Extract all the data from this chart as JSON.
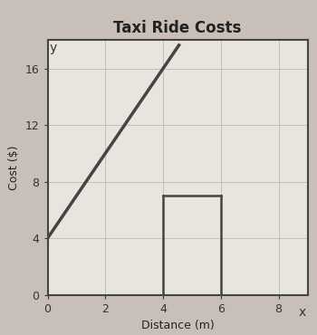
{
  "title": "Taxi Ride Costs",
  "xlabel": "Distance (m)",
  "ylabel": "Cost ($)",
  "xlim": [
    0,
    9
  ],
  "ylim": [
    0,
    18
  ],
  "xticks": [
    0,
    2,
    4,
    6,
    8
  ],
  "yticks": [
    0,
    4,
    8,
    12,
    16
  ],
  "slope": 3,
  "intercept": 4,
  "line_color": "#444444",
  "rect_color": "#444444",
  "grid_color": "#bbbbbb",
  "bg_color": "#c8c0b8",
  "plot_bg_color": "#e8e4de",
  "title_fontsize": 12,
  "label_fontsize": 9,
  "tick_fontsize": 9,
  "rect_x1": 4,
  "rect_x2": 6,
  "rect_y1": 0,
  "rect_y2": 7
}
